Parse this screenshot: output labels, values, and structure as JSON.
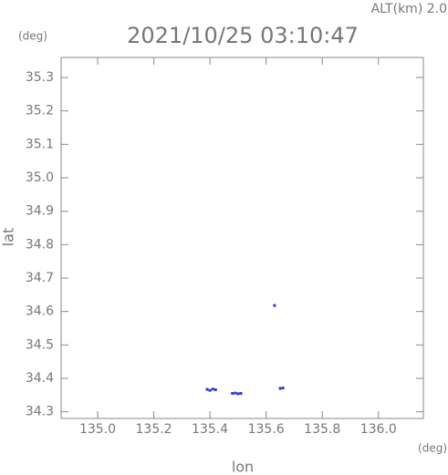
{
  "chart_data": {
    "type": "scatter",
    "title": "2021/10/25 03:10:47",
    "annotation": "ALT(km) 2.0",
    "y_unit": "(deg)",
    "x_unit": "(deg)",
    "x_label": "lon",
    "y_label": "lat",
    "xlim": [
      134.87,
      136.16
    ],
    "ylim": [
      34.28,
      35.36
    ],
    "xticks": [
      {
        "value": 135.0,
        "label": "135.0"
      },
      135.2,
      135.4,
      135.6,
      135.8,
      {
        "value": 136.0,
        "label": "136.0"
      }
    ],
    "yticks": [
      34.3,
      34.4,
      34.5,
      34.6,
      34.7,
      34.8,
      34.9,
      {
        "value": 35.0,
        "label": "35.0"
      },
      35.1,
      35.2,
      35.3
    ],
    "series": [
      {
        "color": "#2a3fd0",
        "x": [
          135.63,
          135.39,
          135.4,
          135.41,
          135.42,
          135.48,
          135.49,
          135.5,
          135.51,
          135.65,
          135.66
        ],
        "values": [
          34.618,
          34.367,
          34.364,
          34.368,
          34.366,
          34.355,
          34.356,
          34.354,
          34.355,
          34.37,
          34.371
        ]
      }
    ]
  }
}
